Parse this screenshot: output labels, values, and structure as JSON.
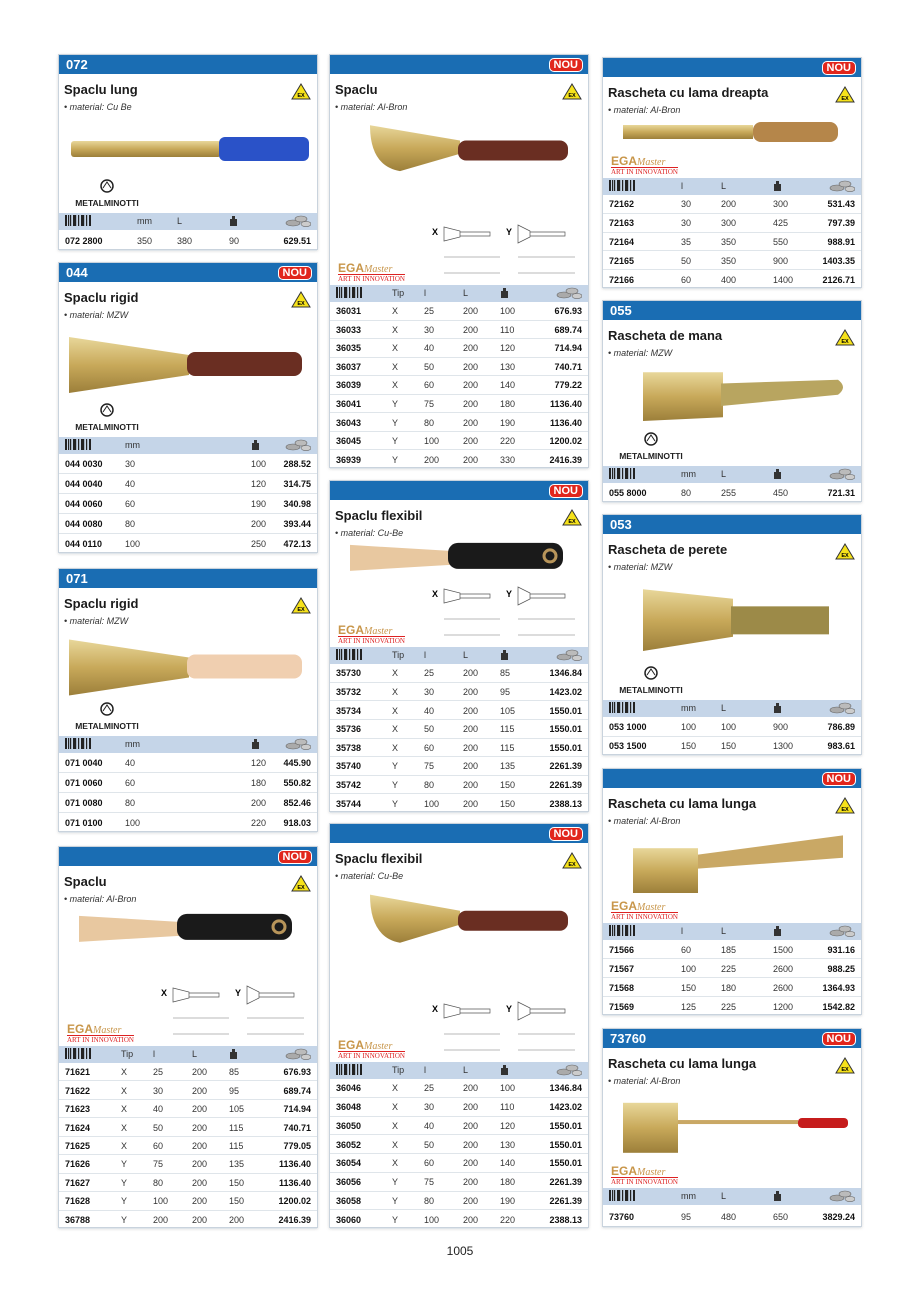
{
  "page_number": "1005",
  "brands": {
    "metalminotti": "METALMINOTTI",
    "ega_main": "EGA",
    "ega_script": "Master",
    "ega_tagline": "ART IN INNOVATION"
  },
  "colors": {
    "header_blue": "#1a6db3",
    "nou_red": "#e1261c",
    "table_header": "#c5d5e8"
  },
  "icons": {
    "barcode": "barcode-icon",
    "weight": "weight-icon",
    "price": "coins-icon",
    "ex": "ex-warning-icon"
  },
  "sections": [
    {
      "code": "072",
      "nou": false,
      "title": "Spaclu lung",
      "material": "• material: Cu Be",
      "brand": "metalminotti",
      "columns": [
        "barcode",
        "mm",
        "L",
        "weight",
        "price"
      ],
      "rows": [
        [
          "072 2800",
          "350",
          "380",
          "90",
          "629.51"
        ]
      ]
    },
    {
      "code": "044",
      "nou": true,
      "title": "Spaclu rigid",
      "material": "• material: MZW",
      "brand": "metalminotti",
      "columns": [
        "barcode",
        "mm",
        "weight",
        "price"
      ],
      "rows": [
        [
          "044 0030",
          "30",
          "100",
          "288.52"
        ],
        [
          "044 0040",
          "40",
          "120",
          "314.75"
        ],
        [
          "044 0060",
          "60",
          "190",
          "340.98"
        ],
        [
          "044 0080",
          "80",
          "200",
          "393.44"
        ],
        [
          "044 0110",
          "100",
          "250",
          "472.13"
        ]
      ]
    },
    {
      "code": "071",
      "nou": false,
      "title": "Spaclu rigid",
      "material": "• material: MZW",
      "brand": "metalminotti",
      "columns": [
        "barcode",
        "mm",
        "weight",
        "price"
      ],
      "rows": [
        [
          "071 0040",
          "40",
          "120",
          "445.90"
        ],
        [
          "071 0060",
          "60",
          "180",
          "550.82"
        ],
        [
          "071 0080",
          "80",
          "200",
          "852.46"
        ],
        [
          "071 0100",
          "100",
          "220",
          "918.03"
        ]
      ]
    },
    {
      "code": "",
      "nou": true,
      "title": "Spaclu",
      "material": "• material: Al-Bron",
      "brand": "ega",
      "diagram": [
        "X",
        "Y"
      ],
      "columns": [
        "barcode",
        "Tip",
        "l",
        "L",
        "weight",
        "price"
      ],
      "rows": [
        [
          "71621",
          "X",
          "25",
          "200",
          "85",
          "676.93"
        ],
        [
          "71622",
          "X",
          "30",
          "200",
          "95",
          "689.74"
        ],
        [
          "71623",
          "X",
          "40",
          "200",
          "105",
          "714.94"
        ],
        [
          "71624",
          "X",
          "50",
          "200",
          "115",
          "740.71"
        ],
        [
          "71625",
          "X",
          "60",
          "200",
          "115",
          "779.05"
        ],
        [
          "71626",
          "Y",
          "75",
          "200",
          "135",
          "1136.40"
        ],
        [
          "71627",
          "Y",
          "80",
          "200",
          "150",
          "1136.40"
        ],
        [
          "71628",
          "Y",
          "100",
          "200",
          "150",
          "1200.02"
        ],
        [
          "36788",
          "Y",
          "200",
          "200",
          "200",
          "2416.39"
        ]
      ]
    },
    {
      "code": "",
      "nou": true,
      "title": "Spaclu",
      "material": "• material: Al-Bron",
      "brand": "ega",
      "diagram": [
        "X",
        "Y"
      ],
      "columns": [
        "barcode",
        "Tip",
        "l",
        "L",
        "weight",
        "price"
      ],
      "rows": [
        [
          "36031",
          "X",
          "25",
          "200",
          "100",
          "676.93"
        ],
        [
          "36033",
          "X",
          "30",
          "200",
          "110",
          "689.74"
        ],
        [
          "36035",
          "X",
          "40",
          "200",
          "120",
          "714.94"
        ],
        [
          "36037",
          "X",
          "50",
          "200",
          "130",
          "740.71"
        ],
        [
          "36039",
          "X",
          "60",
          "200",
          "140",
          "779.22"
        ],
        [
          "36041",
          "Y",
          "75",
          "200",
          "180",
          "1136.40"
        ],
        [
          "36043",
          "Y",
          "80",
          "200",
          "190",
          "1136.40"
        ],
        [
          "36045",
          "Y",
          "100",
          "200",
          "220",
          "1200.02"
        ],
        [
          "36939",
          "Y",
          "200",
          "200",
          "330",
          "2416.39"
        ]
      ]
    },
    {
      "code": "",
      "nou": true,
      "title": "Spaclu flexibil",
      "material": "• material: Cu-Be",
      "brand": "ega",
      "diagram": [
        "X",
        "Y"
      ],
      "columns": [
        "barcode",
        "Tip",
        "l",
        "L",
        "weight",
        "price"
      ],
      "rows": [
        [
          "35730",
          "X",
          "25",
          "200",
          "85",
          "1346.84"
        ],
        [
          "35732",
          "X",
          "30",
          "200",
          "95",
          "1423.02"
        ],
        [
          "35734",
          "X",
          "40",
          "200",
          "105",
          "1550.01"
        ],
        [
          "35736",
          "X",
          "50",
          "200",
          "115",
          "1550.01"
        ],
        [
          "35738",
          "X",
          "60",
          "200",
          "115",
          "1550.01"
        ],
        [
          "35740",
          "Y",
          "75",
          "200",
          "135",
          "2261.39"
        ],
        [
          "35742",
          "Y",
          "80",
          "200",
          "150",
          "2261.39"
        ],
        [
          "35744",
          "Y",
          "100",
          "200",
          "150",
          "2388.13"
        ]
      ]
    },
    {
      "code": "",
      "nou": true,
      "title": "Spaclu flexibil",
      "material": "• material: Cu-Be",
      "brand": "ega",
      "diagram": [
        "X",
        "Y"
      ],
      "columns": [
        "barcode",
        "Tip",
        "l",
        "L",
        "weight",
        "price"
      ],
      "rows": [
        [
          "36046",
          "X",
          "25",
          "200",
          "100",
          "1346.84"
        ],
        [
          "36048",
          "X",
          "30",
          "200",
          "110",
          "1423.02"
        ],
        [
          "36050",
          "X",
          "40",
          "200",
          "120",
          "1550.01"
        ],
        [
          "36052",
          "X",
          "50",
          "200",
          "130",
          "1550.01"
        ],
        [
          "36054",
          "X",
          "60",
          "200",
          "140",
          "1550.01"
        ],
        [
          "36056",
          "Y",
          "75",
          "200",
          "180",
          "2261.39"
        ],
        [
          "36058",
          "Y",
          "80",
          "200",
          "190",
          "2261.39"
        ],
        [
          "36060",
          "Y",
          "100",
          "200",
          "220",
          "2388.13"
        ]
      ]
    },
    {
      "code": "",
      "nou": true,
      "title": "Rascheta cu lama dreapta",
      "material": "• material: Al-Bron",
      "brand": "ega",
      "columns": [
        "barcode",
        "l",
        "L",
        "weight",
        "price"
      ],
      "rows": [
        [
          "72162",
          "30",
          "200",
          "300",
          "531.43"
        ],
        [
          "72163",
          "30",
          "300",
          "425",
          "797.39"
        ],
        [
          "72164",
          "35",
          "350",
          "550",
          "988.91"
        ],
        [
          "72165",
          "50",
          "350",
          "900",
          "1403.35"
        ],
        [
          "72166",
          "60",
          "400",
          "1400",
          "2126.71"
        ]
      ]
    },
    {
      "code": "055",
      "nou": false,
      "title": "Rascheta de mana",
      "material": "• material: MZW",
      "brand": "metalminotti",
      "columns": [
        "barcode",
        "mm",
        "L",
        "weight",
        "price"
      ],
      "rows": [
        [
          "055 8000",
          "80",
          "255",
          "450",
          "721.31"
        ]
      ]
    },
    {
      "code": "053",
      "nou": false,
      "title": "Rascheta de perete",
      "material": "• material: MZW",
      "brand": "metalminotti",
      "columns": [
        "barcode",
        "mm",
        "L",
        "weight",
        "price"
      ],
      "rows": [
        [
          "053 1000",
          "100",
          "100",
          "900",
          "786.89"
        ],
        [
          "053 1500",
          "150",
          "150",
          "1300",
          "983.61"
        ]
      ]
    },
    {
      "code": "",
      "nou": true,
      "title": "Rascheta cu lama lunga",
      "material": "• material: Al-Bron",
      "brand": "ega",
      "columns": [
        "barcode",
        "l",
        "L",
        "weight",
        "price"
      ],
      "rows": [
        [
          "71566",
          "60",
          "185",
          "1500",
          "931.16"
        ],
        [
          "71567",
          "100",
          "225",
          "2600",
          "988.25"
        ],
        [
          "71568",
          "150",
          "180",
          "2600",
          "1364.93"
        ],
        [
          "71569",
          "125",
          "225",
          "1200",
          "1542.82"
        ]
      ]
    },
    {
      "code": "73760",
      "nou": true,
      "title": "Rascheta cu lama lunga",
      "material": "• material: Al-Bron",
      "brand": "ega",
      "columns": [
        "barcode",
        "mm",
        "L",
        "weight",
        "price"
      ],
      "rows": [
        [
          "73760",
          "95",
          "480",
          "650",
          "3829.24"
        ]
      ]
    }
  ],
  "nou_label": "NOU"
}
